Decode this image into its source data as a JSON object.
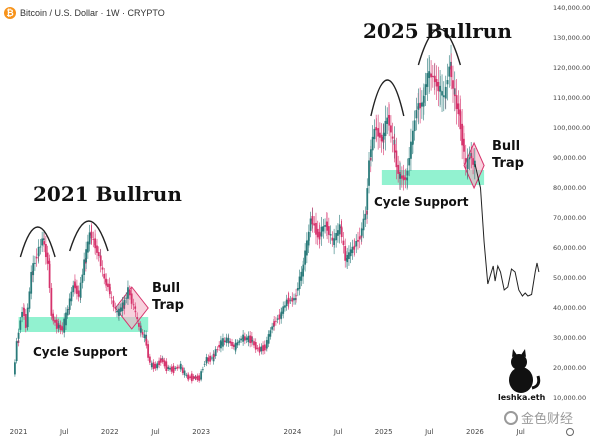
{
  "header": {
    "title": "Bitcoin / U.S. Dollar · 1W · CRYPTO",
    "coin_symbol": "₿"
  },
  "chart_data": {
    "type": "candlestick",
    "x_ticks": [
      "2021",
      "Jul",
      "2022",
      "Jul",
      "2023",
      "2024",
      "Jul",
      "2025",
      "Jul",
      "2026",
      "Jul"
    ],
    "y_ticks": [
      "140,000.00",
      "130,000.00",
      "120,000.00",
      "110,000.00",
      "100,000.00",
      "90,000.00",
      "80,000.00",
      "70,000.00",
      "60,000.00",
      "50,000.00",
      "40,000.00",
      "30,000.00",
      "20,000.00",
      "10,000.00"
    ],
    "ylim": [
      0,
      140000
    ],
    "xlim": [
      2020.95,
      2026.8
    ],
    "colors": {
      "up": "#2a7a7a",
      "down": "#d6336c",
      "support": "#7ff0c8",
      "trap": "#f3b3c6",
      "trap_stroke": "#d6336c"
    },
    "price_path": [
      [
        2020.96,
        17000
      ],
      [
        2021.0,
        29000
      ],
      [
        2021.06,
        40000
      ],
      [
        2021.1,
        34000
      ],
      [
        2021.16,
        52000
      ],
      [
        2021.22,
        58000
      ],
      [
        2021.28,
        63000
      ],
      [
        2021.34,
        55000
      ],
      [
        2021.38,
        37000
      ],
      [
        2021.44,
        34000
      ],
      [
        2021.5,
        33000
      ],
      [
        2021.56,
        40000
      ],
      [
        2021.62,
        48000
      ],
      [
        2021.68,
        44000
      ],
      [
        2021.74,
        56000
      ],
      [
        2021.8,
        65000
      ],
      [
        2021.84,
        62000
      ],
      [
        2021.9,
        57000
      ],
      [
        2021.96,
        49000
      ],
      [
        2022.0,
        47000
      ],
      [
        2022.04,
        42000
      ],
      [
        2022.1,
        38000
      ],
      [
        2022.16,
        41000
      ],
      [
        2022.22,
        46000
      ],
      [
        2022.28,
        40000
      ],
      [
        2022.34,
        33000
      ],
      [
        2022.4,
        30000
      ],
      [
        2022.46,
        21000
      ],
      [
        2022.52,
        20500
      ],
      [
        2022.58,
        23000
      ],
      [
        2022.64,
        20000
      ],
      [
        2022.7,
        19500
      ],
      [
        2022.78,
        20500
      ],
      [
        2022.86,
        17000
      ],
      [
        2022.94,
        16800
      ],
      [
        2023.0,
        16600
      ],
      [
        2023.06,
        22500
      ],
      [
        2023.14,
        23500
      ],
      [
        2023.22,
        28000
      ],
      [
        2023.3,
        29500
      ],
      [
        2023.38,
        27000
      ],
      [
        2023.46,
        30000
      ],
      [
        2023.56,
        29500
      ],
      [
        2023.64,
        26000
      ],
      [
        2023.72,
        27000
      ],
      [
        2023.8,
        34500
      ],
      [
        2023.88,
        37500
      ],
      [
        2023.96,
        42500
      ],
      [
        2024.04,
        43000
      ],
      [
        2024.12,
        52000
      ],
      [
        2024.18,
        62000
      ],
      [
        2024.22,
        70000
      ],
      [
        2024.3,
        64000
      ],
      [
        2024.38,
        68000
      ],
      [
        2024.46,
        62000
      ],
      [
        2024.54,
        67000
      ],
      [
        2024.6,
        56000
      ],
      [
        2024.68,
        60000
      ],
      [
        2024.76,
        64000
      ],
      [
        2024.82,
        72000
      ],
      [
        2024.86,
        90000
      ],
      [
        2024.92,
        100000
      ],
      [
        2025.0,
        96000
      ],
      [
        2025.06,
        104000
      ],
      [
        2025.12,
        95000
      ],
      [
        2025.18,
        84000
      ],
      [
        2025.26,
        83000
      ],
      [
        2025.32,
        95000
      ],
      [
        2025.38,
        107000
      ],
      [
        2025.44,
        108000
      ],
      [
        2025.5,
        118000
      ],
      [
        2025.56,
        117000
      ],
      [
        2025.62,
        113000
      ],
      [
        2025.68,
        110000
      ],
      [
        2025.74,
        121000
      ],
      [
        2025.78,
        112000
      ],
      [
        2025.84,
        105000
      ],
      [
        2025.88,
        95000
      ],
      [
        2025.92,
        87000
      ],
      [
        2025.96,
        91000
      ],
      [
        2026.0,
        88000
      ]
    ],
    "projection": [
      [
        2026.0,
        88000
      ],
      [
        2026.06,
        80000
      ],
      [
        2026.1,
        62000
      ],
      [
        2026.14,
        48000
      ],
      [
        2026.17,
        51000
      ],
      [
        2026.2,
        54000
      ],
      [
        2026.22,
        49000
      ],
      [
        2026.25,
        54000
      ],
      [
        2026.28,
        52000
      ],
      [
        2026.32,
        46000
      ],
      [
        2026.36,
        47000
      ],
      [
        2026.4,
        53000
      ],
      [
        2026.44,
        52000
      ],
      [
        2026.48,
        46000
      ],
      [
        2026.52,
        44000
      ],
      [
        2026.55,
        45000
      ],
      [
        2026.58,
        44000
      ],
      [
        2026.62,
        44500
      ],
      [
        2026.66,
        52000
      ],
      [
        2026.68,
        55000
      ],
      [
        2026.7,
        52000
      ]
    ],
    "support_zones": [
      {
        "x": [
          2021.0,
          2022.42
        ],
        "y": [
          32000,
          37000
        ]
      },
      {
        "x": [
          2024.98,
          2026.1
        ],
        "y": [
          81000,
          86000
        ]
      }
    ],
    "trap_zones": [
      {
        "x": [
          2022.06,
          2022.42
        ],
        "y": [
          33000,
          47000
        ]
      },
      {
        "x": [
          2025.88,
          2026.1
        ],
        "y": [
          80000,
          95000
        ]
      }
    ],
    "arcs": [
      {
        "x": [
          2021.02,
          2021.4
        ],
        "peak_y": 67000,
        "base_y": 57000
      },
      {
        "x": [
          2021.56,
          2021.98
        ],
        "peak_y": 69000,
        "base_y": 59000
      },
      {
        "x": [
          2024.86,
          2025.22
        ],
        "peak_y": 116000,
        "base_y": 104000
      },
      {
        "x": [
          2025.38,
          2025.84
        ],
        "peak_y": 133000,
        "base_y": 121000
      }
    ],
    "annotations": {
      "bullrun_2021": "2021 Bullrun",
      "bullrun_2025": "2025 Bullrun",
      "bull_trap_1a": "Bull",
      "bull_trap_1b": "Trap",
      "bull_trap_2a": "Bull",
      "bull_trap_2b": "Trap",
      "cycle_support_1": "Cycle Support",
      "cycle_support_2": "Cycle Support",
      "signature": "leshka.eth"
    }
  },
  "watermark": {
    "text": "金色财经"
  }
}
